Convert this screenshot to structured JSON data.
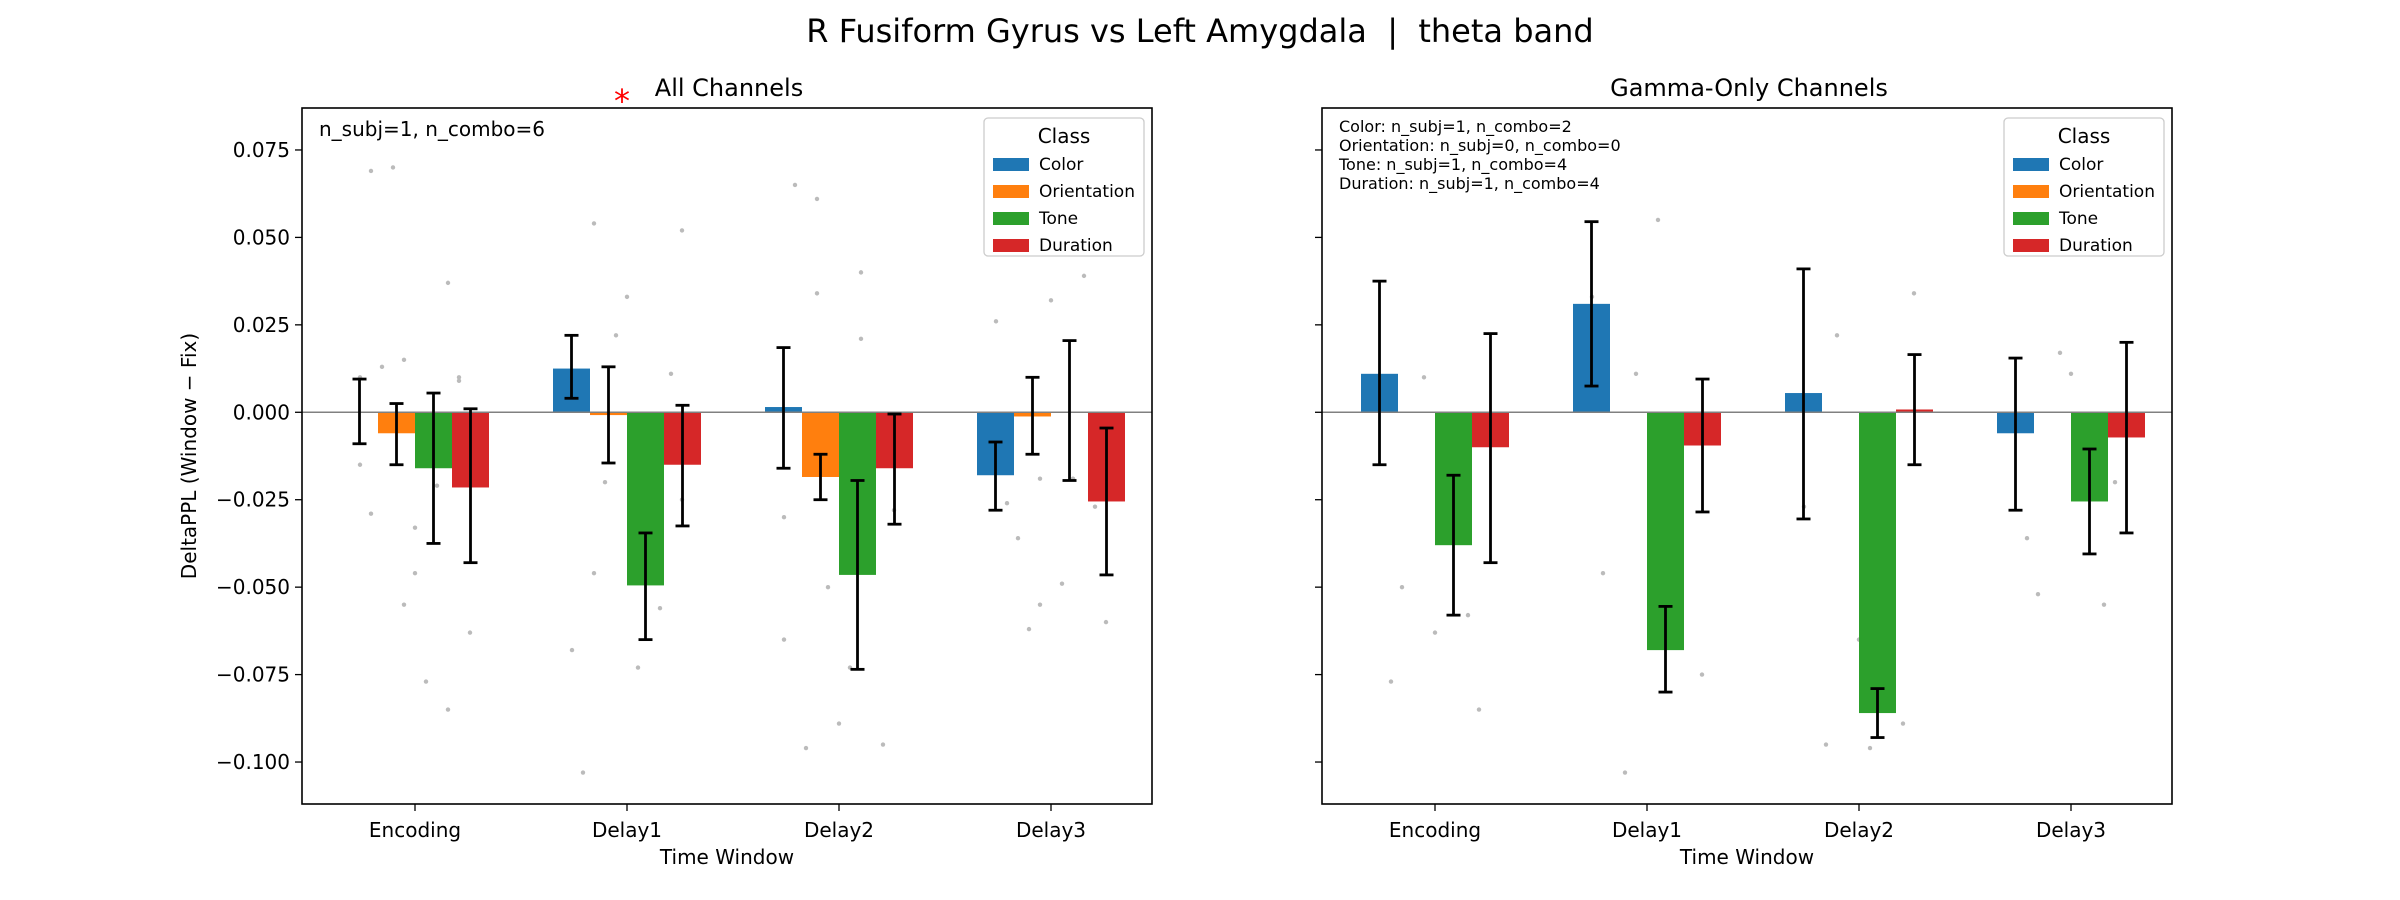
{
  "figure": {
    "suptitle": "R Fusiform Gyrus vs Left Amygdala  |  theta band"
  },
  "legend_title": "Class",
  "colors": {
    "Color": "#1f77b4",
    "Orientation": "#ff7f0e",
    "Tone": "#2ca02c",
    "Duration": "#d62728",
    "error_bar": "#000000",
    "points": "#bbbbbb",
    "significance": "#ff0000"
  },
  "chart_data": [
    {
      "type": "bar",
      "title": "All Channels",
      "significance_marker": "*",
      "annotation": [
        "n_subj=1, n_combo=6"
      ],
      "xlabel": "Time Window",
      "ylabel": "DeltaPPL (Window − Fix)",
      "categories": [
        "Encoding",
        "Delay1",
        "Delay2",
        "Delay3"
      ],
      "ylim": [
        -0.112,
        0.087
      ],
      "yticks": [
        0.075,
        0.05,
        0.025,
        0.0,
        -0.025,
        -0.05,
        -0.075,
        -0.1
      ],
      "ytick_labels": [
        "0.075",
        "0.050",
        "0.025",
        "0.000",
        "−0.025",
        "−0.050",
        "−0.075",
        "−0.100"
      ],
      "legend_position": "top-right",
      "series": [
        {
          "name": "Color",
          "values": [
            0.0,
            0.0125,
            0.0015,
            -0.018
          ],
          "err_low": [
            -0.009,
            0.004,
            -0.016,
            -0.028
          ],
          "err_high": [
            0.0095,
            0.022,
            0.0185,
            -0.0085
          ]
        },
        {
          "name": "Orientation",
          "values": [
            -0.006,
            -0.0008,
            -0.0185,
            -0.0012
          ],
          "err_low": [
            -0.015,
            -0.0145,
            -0.025,
            -0.012
          ],
          "err_high": [
            0.0025,
            0.013,
            -0.012,
            0.01
          ]
        },
        {
          "name": "Tone",
          "values": [
            -0.016,
            -0.0495,
            -0.0465,
            0.0
          ],
          "err_low": [
            -0.0375,
            -0.065,
            -0.0735,
            -0.0195
          ],
          "err_high": [
            0.0055,
            -0.0345,
            -0.0195,
            0.0205
          ]
        },
        {
          "name": "Duration",
          "values": [
            -0.0215,
            -0.015,
            -0.016,
            -0.0255
          ],
          "err_low": [
            -0.043,
            -0.0325,
            -0.032,
            -0.0465
          ],
          "err_high": [
            0.001,
            0.002,
            -0.0005,
            -0.0045
          ]
        }
      ],
      "scatter_points": [
        [
          0,
          -0.015
        ],
        [
          0,
          0.015
        ],
        [
          0,
          0.037
        ],
        [
          0,
          -0.029
        ],
        [
          0,
          -0.046
        ],
        [
          0,
          0.01
        ],
        [
          0,
          0.013
        ],
        [
          0,
          -0.077
        ],
        [
          0,
          -0.063
        ],
        [
          0,
          0.07
        ],
        [
          0,
          -0.021
        ],
        [
          0,
          0.01
        ],
        [
          0,
          -0.055
        ],
        [
          0,
          -0.085
        ],
        [
          0,
          0.069
        ],
        [
          0,
          -0.033
        ],
        [
          0,
          0.009
        ],
        [
          1,
          0.054
        ],
        [
          1,
          -0.011
        ],
        [
          1,
          0.052
        ],
        [
          1,
          -0.02
        ],
        [
          1,
          -0.037
        ],
        [
          1,
          -0.068
        ],
        [
          1,
          0.022
        ],
        [
          1,
          -0.056
        ],
        [
          1,
          -0.103
        ],
        [
          1,
          0.033
        ],
        [
          1,
          0.011
        ],
        [
          1,
          -0.046
        ],
        [
          1,
          -0.073
        ],
        [
          1,
          -0.025
        ],
        [
          2,
          0.061
        ],
        [
          2,
          0.04
        ],
        [
          2,
          -0.03
        ],
        [
          2,
          -0.05
        ],
        [
          2,
          -0.031
        ],
        [
          2,
          0.065
        ],
        [
          2,
          -0.089
        ],
        [
          2,
          -0.095
        ],
        [
          2,
          -0.096
        ],
        [
          2,
          -0.073
        ],
        [
          2,
          -0.028
        ],
        [
          2,
          0.034
        ],
        [
          2,
          0.021
        ],
        [
          2,
          -0.065
        ],
        [
          3,
          -0.055
        ],
        [
          3,
          0.039
        ],
        [
          3,
          -0.026
        ],
        [
          3,
          0.032
        ],
        [
          3,
          -0.027
        ],
        [
          3,
          -0.036
        ],
        [
          3,
          -0.049
        ],
        [
          3,
          -0.06
        ],
        [
          3,
          -0.062
        ],
        [
          3,
          -0.019
        ],
        [
          3,
          0.026
        ],
        [
          3,
          -0.019
        ]
      ]
    },
    {
      "type": "bar",
      "title": "Gamma-Only Channels",
      "significance_marker": "",
      "annotation": [
        "Color: n_subj=1, n_combo=2",
        "Orientation: n_subj=0, n_combo=0",
        "Tone: n_subj=1, n_combo=4",
        "Duration: n_subj=1, n_combo=4"
      ],
      "xlabel": "Time Window",
      "ylabel": "",
      "categories": [
        "Encoding",
        "Delay1",
        "Delay2",
        "Delay3"
      ],
      "ylim": [
        -0.112,
        0.087
      ],
      "yticks": [
        0.075,
        0.05,
        0.025,
        0.0,
        -0.025,
        -0.05,
        -0.075,
        -0.1
      ],
      "ytick_labels": [],
      "legend_position": "top-right",
      "series": [
        {
          "name": "Color",
          "values": [
            0.011,
            0.031,
            0.0055,
            -0.006
          ],
          "err_low": [
            -0.015,
            0.0075,
            -0.0305,
            -0.028
          ],
          "err_high": [
            0.0375,
            0.0545,
            0.041,
            0.0155
          ]
        },
        {
          "name": "Orientation",
          "values": [
            null,
            null,
            null,
            null
          ],
          "err_low": [
            null,
            null,
            null,
            null
          ],
          "err_high": [
            null,
            null,
            null,
            null
          ]
        },
        {
          "name": "Tone",
          "values": [
            -0.038,
            -0.068,
            -0.086,
            -0.0255
          ],
          "err_low": [
            -0.058,
            -0.08,
            -0.093,
            -0.0405
          ],
          "err_high": [
            -0.018,
            -0.0555,
            -0.079,
            -0.0105
          ]
        },
        {
          "name": "Duration",
          "values": [
            -0.01,
            -0.0095,
            0.0008,
            -0.0072
          ],
          "err_low": [
            -0.043,
            -0.0285,
            -0.015,
            -0.0345
          ],
          "err_high": [
            0.0225,
            0.0095,
            0.0165,
            0.02
          ]
        }
      ],
      "scatter_points": [
        [
          0,
          0.009
        ],
        [
          0,
          0.01
        ],
        [
          0,
          -0.058
        ],
        [
          0,
          -0.077
        ],
        [
          0,
          -0.063
        ],
        [
          0,
          -0.085
        ],
        [
          0,
          -0.05
        ],
        [
          1,
          0.055
        ],
        [
          1,
          -0.075
        ],
        [
          1,
          -0.103
        ],
        [
          1,
          -0.055
        ],
        [
          1,
          0.033
        ],
        [
          1,
          0.011
        ],
        [
          1,
          -0.036
        ],
        [
          1,
          -0.046
        ],
        [
          2,
          -0.065
        ],
        [
          2,
          -0.089
        ],
        [
          2,
          -0.095
        ],
        [
          2,
          -0.096
        ],
        [
          2,
          0.034
        ],
        [
          2,
          0.022
        ],
        [
          2,
          -0.025
        ],
        [
          2,
          -0.027
        ],
        [
          3,
          0.017
        ],
        [
          3,
          -0.055
        ],
        [
          3,
          -0.036
        ],
        [
          3,
          0.011
        ],
        [
          3,
          -0.02
        ],
        [
          3,
          -0.052
        ]
      ]
    }
  ]
}
